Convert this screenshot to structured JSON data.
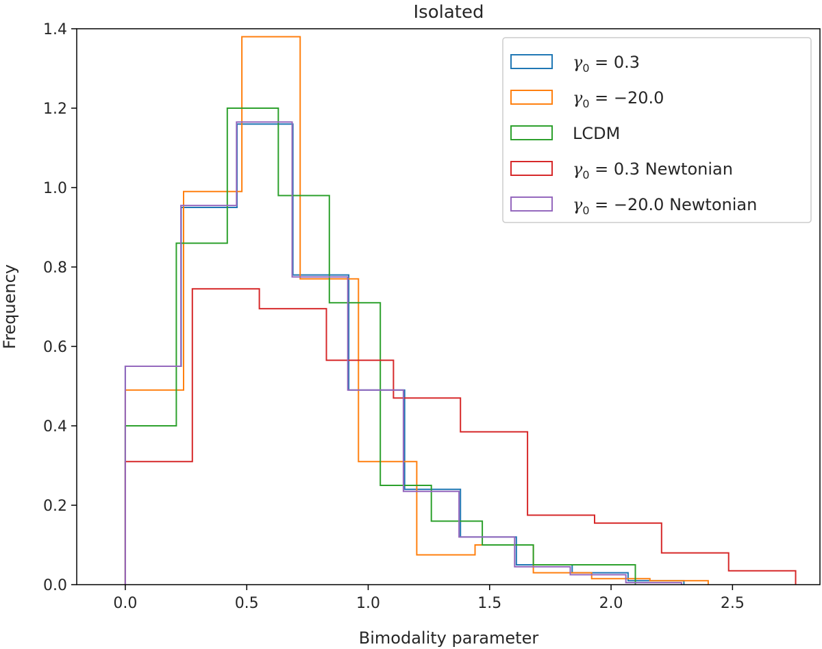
{
  "chart_data": {
    "type": "histogram-step",
    "title": "Isolated",
    "xlabel": "Bimodality parameter",
    "ylabel": "Frequency",
    "xlim": [
      -0.2,
      2.86
    ],
    "ylim": [
      0,
      1.4
    ],
    "xticks": [
      "0.0",
      "0.5",
      "1.0",
      "1.5",
      "2.0",
      "2.5"
    ],
    "yticks": [
      "0.0",
      "0.2",
      "0.4",
      "0.6",
      "0.8",
      "1.0",
      "1.2",
      "1.4"
    ],
    "legend_position": "top-right",
    "series": [
      {
        "name": "γ0 = 0.3",
        "label_math": "γ",
        "label_sub": "0",
        "label_rest": " = 0.3",
        "color": "#1f77b4",
        "edges": [
          0.0,
          0.23,
          0.46,
          0.69,
          0.92,
          1.15,
          1.38,
          1.61,
          1.84,
          2.07,
          2.3
        ],
        "values": [
          0.55,
          0.95,
          1.16,
          0.78,
          0.49,
          0.24,
          0.12,
          0.05,
          0.03,
          0.01
        ]
      },
      {
        "name": "γ0 = −20.0",
        "label_math": "γ",
        "label_sub": "0",
        "label_rest": " = −20.0",
        "color": "#ff7f0e",
        "edges": [
          0.0,
          0.24,
          0.48,
          0.72,
          0.96,
          1.2,
          1.44,
          1.68,
          1.92,
          2.16,
          2.4
        ],
        "values": [
          0.49,
          0.99,
          1.38,
          0.77,
          0.31,
          0.075,
          0.1,
          0.03,
          0.015,
          0.01
        ]
      },
      {
        "name": "LCDM",
        "label_math": "",
        "label_sub": "",
        "label_rest": "LCDM",
        "color": "#2ca02c",
        "edges": [
          0.0,
          0.21,
          0.42,
          0.63,
          0.84,
          1.05,
          1.26,
          1.47,
          1.68,
          1.89,
          2.1
        ],
        "values": [
          0.4,
          0.86,
          1.2,
          0.98,
          0.71,
          0.25,
          0.16,
          0.1,
          0.05,
          0.05
        ]
      },
      {
        "name": "γ0 = 0.3 Newtonian",
        "label_math": "γ",
        "label_sub": "0",
        "label_rest": " = 0.3 Newtonian",
        "color": "#d62728",
        "edges": [
          0.0,
          0.276,
          0.552,
          0.828,
          1.104,
          1.38,
          1.656,
          1.932,
          2.208,
          2.484,
          2.76
        ],
        "values": [
          0.31,
          0.745,
          0.695,
          0.565,
          0.47,
          0.385,
          0.175,
          0.155,
          0.08,
          0.035
        ]
      },
      {
        "name": "γ0 = −20.0 Newtonian",
        "label_math": "γ",
        "label_sub": "0",
        "label_rest": " = −20.0 Newtonian",
        "color": "#9467bd",
        "edges": [
          0.0,
          0.229,
          0.458,
          0.687,
          0.916,
          1.145,
          1.374,
          1.603,
          1.832,
          2.061,
          2.29
        ],
        "values": [
          0.55,
          0.955,
          1.165,
          0.775,
          0.49,
          0.235,
          0.12,
          0.045,
          0.025,
          0.005
        ]
      }
    ]
  }
}
